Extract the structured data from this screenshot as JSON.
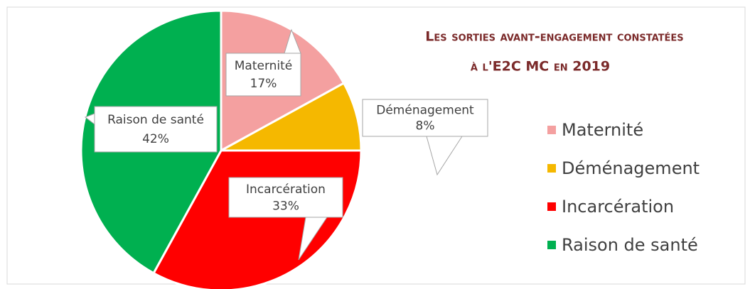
{
  "chart_data": {
    "type": "pie",
    "title": [
      "Les sorties avant-engagement constatées",
      "à l'E2C MC en 2019"
    ],
    "categories": [
      "Maternité",
      "Déménagement",
      "Incarcération",
      "Raison de santé"
    ],
    "values": [
      17,
      8,
      33,
      42
    ],
    "value_labels": [
      "17%",
      "8%",
      "33%",
      "42%"
    ],
    "colors": [
      "#f4a0a0",
      "#f5b800",
      "#ff0000",
      "#00b050"
    ],
    "legend": "right"
  }
}
